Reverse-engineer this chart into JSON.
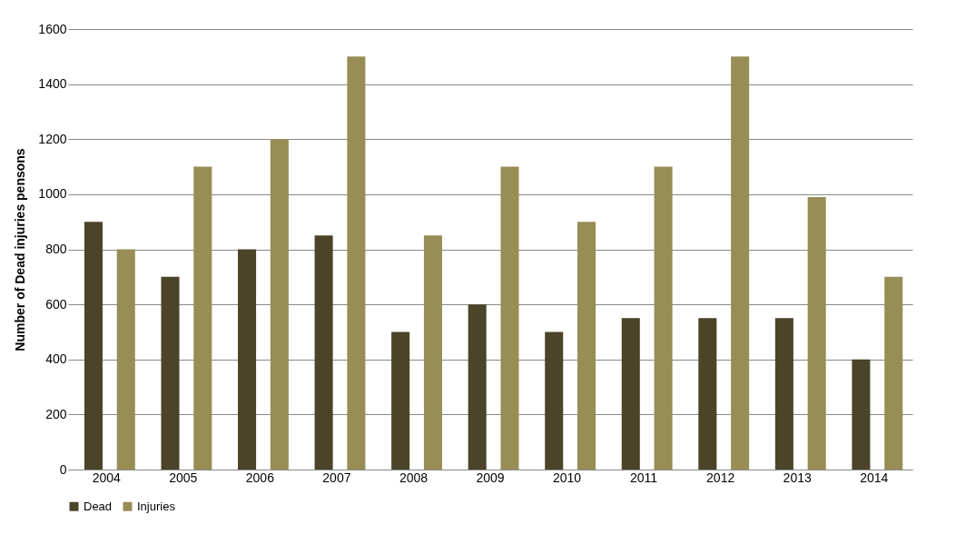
{
  "chart_data": {
    "type": "bar",
    "ylabel": "Number of Dead injuries pensons",
    "categories": [
      "2004",
      "2005",
      "2006",
      "2007",
      "2008",
      "2009",
      "2010",
      "2011",
      "2012",
      "2013",
      "2014"
    ],
    "series": [
      {
        "name": "Dead",
        "color": "#4b4429",
        "values": [
          900,
          700,
          800,
          850,
          500,
          600,
          500,
          550,
          550,
          550,
          400
        ]
      },
      {
        "name": "Injuries",
        "color": "#978d55",
        "values": [
          800,
          1100,
          1200,
          1500,
          850,
          1100,
          900,
          1100,
          1500,
          990,
          700
        ]
      }
    ],
    "ylim": [
      0,
      1600
    ],
    "yticks": [
      0,
      200,
      400,
      600,
      800,
      1000,
      1200,
      1400,
      1600
    ],
    "grid": "y",
    "legend": "bottom"
  }
}
